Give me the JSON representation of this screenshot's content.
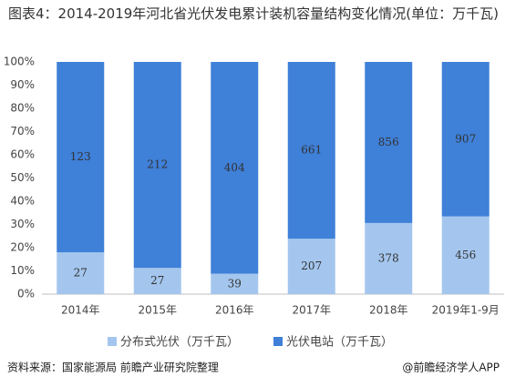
{
  "chart_data": {
    "type": "stacked_percent_bar",
    "title": "图表4：2014-2019年河北省光伏发电累计装机容量结构变化情况(单位：万千瓦)",
    "categories": [
      "2014年",
      "2015年",
      "2016年",
      "2017年",
      "2018年",
      "2019年1-9月"
    ],
    "series": [
      {
        "name": "分布式光伏（万千瓦）",
        "color": "#a4c6ee",
        "values": [
          27,
          27,
          39,
          207,
          378,
          456
        ]
      },
      {
        "name": "光伏电站（万千瓦）",
        "color": "#3f80d8",
        "values": [
          123,
          212,
          404,
          661,
          856,
          907
        ]
      }
    ],
    "ylim": [
      0,
      100
    ],
    "yticks": [
      {
        "value": 0,
        "label": "0%"
      },
      {
        "value": 10,
        "label": "10%"
      },
      {
        "value": 20,
        "label": "20%"
      },
      {
        "value": 30,
        "label": "30%"
      },
      {
        "value": 40,
        "label": "40%"
      },
      {
        "value": 50,
        "label": "50%"
      },
      {
        "value": 60,
        "label": "60%"
      },
      {
        "value": 70,
        "label": "70%"
      },
      {
        "value": 80,
        "label": "80%"
      },
      {
        "value": 90,
        "label": "90%"
      },
      {
        "value": 100,
        "label": "100%"
      }
    ],
    "source": "资料来源：国家能源局 前瞻产业研究院整理",
    "credit": "@前瞻经济学人APP"
  }
}
